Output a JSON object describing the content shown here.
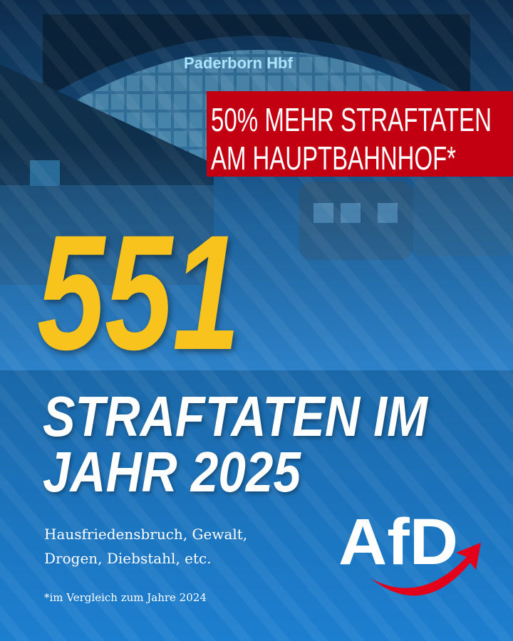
{
  "station_sign": "Paderborn Hbf",
  "banner": {
    "lines": [
      "50% MEHR STRAFTATEN",
      "AM HAUPTBAHNHOF*"
    ]
  },
  "headline": {
    "number": "551",
    "lines": [
      "STRAFTATEN IM",
      "JAHR 2025"
    ]
  },
  "description": [
    "Hausfriedensbruch, Gewalt,",
    "Drogen, Diebstahl, etc."
  ],
  "footnote": "*im Vergleich zum Jahre 2024",
  "logo": "AfD"
}
